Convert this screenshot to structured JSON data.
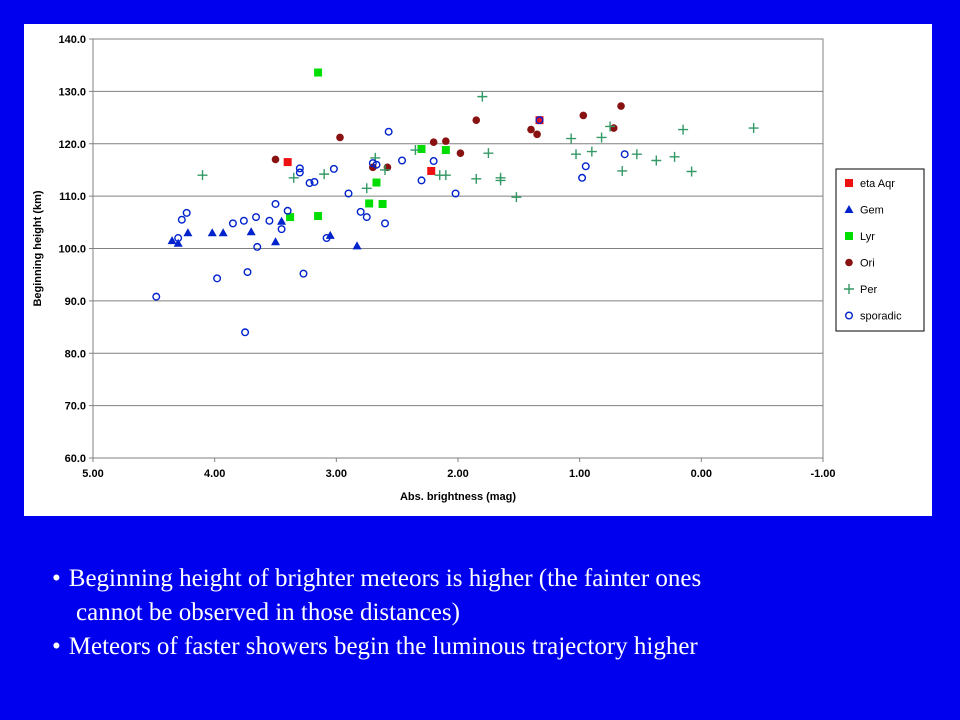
{
  "bullets": [
    {
      "line1": "Beginning height of brighter meteors is higher (the fainter ones",
      "line2": "cannot be observed in those distances)"
    },
    {
      "line1": "Meteors of faster showers begin the luminous trajectory higher"
    }
  ],
  "chart_data": {
    "type": "scatter",
    "xlabel": "Abs. brightness (mag)",
    "ylabel": "Beginning height (km)",
    "xlim": [
      5.0,
      -1.0
    ],
    "ylim": [
      60.0,
      140.0
    ],
    "x_ticks": [
      "5.00",
      "4.00",
      "3.00",
      "2.00",
      "1.00",
      "0.00",
      "-1.00"
    ],
    "y_ticks": [
      "60.0",
      "70.0",
      "80.0",
      "90.0",
      "100.0",
      "110.0",
      "120.0",
      "130.0",
      "140.0"
    ],
    "grid": "horizontal",
    "legend_position": "right",
    "series": [
      {
        "name": "eta Aqr",
        "marker": "square",
        "color": "#ee1111",
        "points": [
          [
            3.4,
            116.5
          ],
          [
            2.22,
            114.8
          ],
          [
            1.33,
            124.5
          ]
        ]
      },
      {
        "name": "Gem",
        "marker": "triangle",
        "color": "#0022cc",
        "points": [
          [
            4.35,
            101.5
          ],
          [
            4.3,
            101.0
          ],
          [
            4.22,
            103.0
          ],
          [
            4.02,
            103.0
          ],
          [
            3.93,
            103.0
          ],
          [
            3.7,
            103.2
          ],
          [
            3.5,
            101.3
          ],
          [
            3.45,
            105.2
          ],
          [
            3.05,
            102.5
          ],
          [
            2.83,
            100.5
          ]
        ]
      },
      {
        "name": "Lyr",
        "marker": "square",
        "color": "#00dd00",
        "points": [
          [
            3.15,
            133.6
          ],
          [
            3.38,
            106.0
          ],
          [
            3.15,
            106.2
          ],
          [
            2.73,
            108.6
          ],
          [
            2.62,
            108.5
          ],
          [
            2.67,
            112.6
          ],
          [
            2.3,
            119.0
          ],
          [
            2.1,
            118.8
          ]
        ]
      },
      {
        "name": "Ori",
        "marker": "circle",
        "color": "#881111",
        "points": [
          [
            3.5,
            117.0
          ],
          [
            2.97,
            121.2
          ],
          [
            2.7,
            115.5
          ],
          [
            2.58,
            115.5
          ],
          [
            2.2,
            120.3
          ],
          [
            2.1,
            120.5
          ],
          [
            1.98,
            118.2
          ],
          [
            1.85,
            124.5
          ],
          [
            1.4,
            122.7
          ],
          [
            1.35,
            121.8
          ],
          [
            0.97,
            125.4
          ],
          [
            0.72,
            123.0
          ],
          [
            0.66,
            127.2
          ]
        ]
      },
      {
        "name": "Per",
        "marker": "plus",
        "color": "#339966",
        "points": [
          [
            4.1,
            114.0
          ],
          [
            3.35,
            113.5
          ],
          [
            3.1,
            114.2
          ],
          [
            2.75,
            111.5
          ],
          [
            2.68,
            117.3
          ],
          [
            2.6,
            115.0
          ],
          [
            2.35,
            118.8
          ],
          [
            2.15,
            114.0
          ],
          [
            2.1,
            114.0
          ],
          [
            1.85,
            113.3
          ],
          [
            1.8,
            129.0
          ],
          [
            1.75,
            118.2
          ],
          [
            1.65,
            113.5
          ],
          [
            1.65,
            113.0
          ],
          [
            1.52,
            109.8
          ],
          [
            1.07,
            121.0
          ],
          [
            1.03,
            118.0
          ],
          [
            0.9,
            118.5
          ],
          [
            0.82,
            121.2
          ],
          [
            0.75,
            123.3
          ],
          [
            0.65,
            114.8
          ],
          [
            0.53,
            118.0
          ],
          [
            0.37,
            116.8
          ],
          [
            0.22,
            117.5
          ],
          [
            0.15,
            122.7
          ],
          [
            0.08,
            114.7
          ],
          [
            -0.43,
            123.0
          ]
        ]
      },
      {
        "name": "sporadic",
        "marker": "open-circle",
        "color": "#0022cc",
        "points": [
          [
            4.48,
            90.8
          ],
          [
            4.3,
            102.0
          ],
          [
            4.27,
            105.5
          ],
          [
            4.23,
            106.8
          ],
          [
            3.98,
            94.3
          ],
          [
            3.85,
            104.8
          ],
          [
            3.76,
            105.3
          ],
          [
            3.73,
            95.5
          ],
          [
            3.66,
            106.0
          ],
          [
            3.65,
            100.3
          ],
          [
            3.55,
            105.3
          ],
          [
            3.5,
            108.5
          ],
          [
            3.45,
            103.7
          ],
          [
            3.4,
            107.2
          ],
          [
            3.3,
            114.5
          ],
          [
            3.3,
            115.3
          ],
          [
            3.27,
            95.2
          ],
          [
            3.22,
            112.5
          ],
          [
            3.18,
            112.7
          ],
          [
            3.08,
            102.0
          ],
          [
            3.02,
            115.2
          ],
          [
            2.9,
            110.5
          ],
          [
            2.8,
            107.0
          ],
          [
            2.75,
            106.0
          ],
          [
            2.7,
            116.3
          ],
          [
            2.67,
            116.0
          ],
          [
            2.6,
            104.8
          ],
          [
            2.57,
            122.3
          ],
          [
            2.46,
            116.8
          ],
          [
            2.3,
            113.0
          ],
          [
            2.2,
            116.7
          ],
          [
            2.02,
            110.5
          ],
          [
            1.33,
            124.5
          ],
          [
            0.98,
            113.5
          ],
          [
            0.95,
            115.7
          ],
          [
            0.63,
            118.0
          ],
          [
            3.75,
            84.0
          ]
        ]
      }
    ]
  }
}
